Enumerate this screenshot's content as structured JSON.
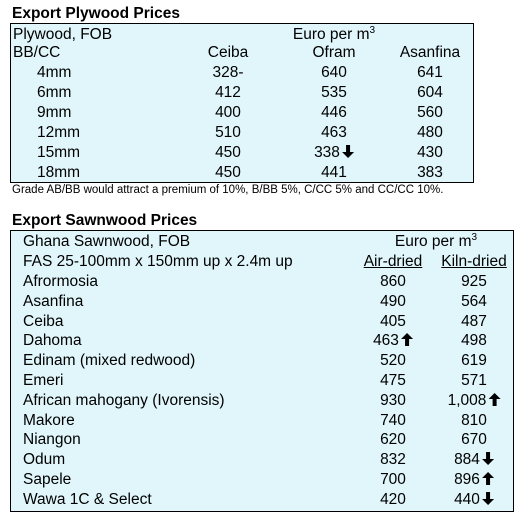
{
  "plywood": {
    "heading": "Export Plywood Prices",
    "title": "Plywood, FOB",
    "grade": "BB/CC",
    "unit_text": "Euro per m",
    "unit_sup": "3",
    "columns": [
      "Ceiba",
      "Ofram",
      "Asanfina"
    ],
    "rows": [
      {
        "size": "4mm",
        "ceiba": "328-",
        "ofram": "640",
        "asanfina": "641"
      },
      {
        "size": "6mm",
        "ceiba": "412",
        "ofram": "535",
        "asanfina": "604"
      },
      {
        "size": "9mm",
        "ceiba": "400",
        "ofram": "446",
        "asanfina": "560"
      },
      {
        "size": "12mm",
        "ceiba": "510",
        "ofram": "463",
        "asanfina": "480"
      },
      {
        "size": "15mm",
        "ceiba": "450",
        "ofram": "338",
        "ofram_trend": "down",
        "asanfina": "430"
      },
      {
        "size": "18mm",
        "ceiba": "450",
        "ofram": "441",
        "asanfina": "383"
      }
    ],
    "note": "Grade AB/BB would attract a premium of 10%, B/BB 5%, C/CC 5% and CC/CC 10%."
  },
  "sawnwood": {
    "heading": "Export Sawnwood Prices",
    "title": "Ghana Sawnwood, FOB",
    "spec": "FAS 25-100mm x 150mm up x 2.4m up",
    "unit_text": "Euro per m",
    "unit_sup": "3",
    "columns": [
      "Air-dried",
      "Kiln-dried"
    ],
    "rows": [
      {
        "species": "Afrormosia",
        "air": "860",
        "kiln": "925"
      },
      {
        "species": "Asanfina",
        "air": "490",
        "kiln": "564"
      },
      {
        "species": "Ceiba",
        "air": "405",
        "kiln": "487"
      },
      {
        "species": "Dahoma",
        "air": "463",
        "air_trend": "up",
        "kiln": "498"
      },
      {
        "species": "Edinam (mixed redwood)",
        "air": "520",
        "kiln": "619"
      },
      {
        "species": "Emeri",
        "air": "475",
        "kiln": "571"
      },
      {
        "species": "African mahogany (Ivorensis)",
        "air": "930",
        "kiln": "1,008",
        "kiln_trend": "up"
      },
      {
        "species": "Makore",
        "air": "740",
        "kiln": "810"
      },
      {
        "species": "Niangon",
        "air": "620",
        "kiln": "670"
      },
      {
        "species": "Odum",
        "air": "832",
        "kiln": "884",
        "kiln_trend": "down"
      },
      {
        "species": "Sapele",
        "air": "700",
        "kiln": "896",
        "kiln_trend": "up"
      },
      {
        "species": "Wawa 1C & Select",
        "air": "420",
        "kiln": "440",
        "kiln_trend": "down"
      }
    ]
  }
}
